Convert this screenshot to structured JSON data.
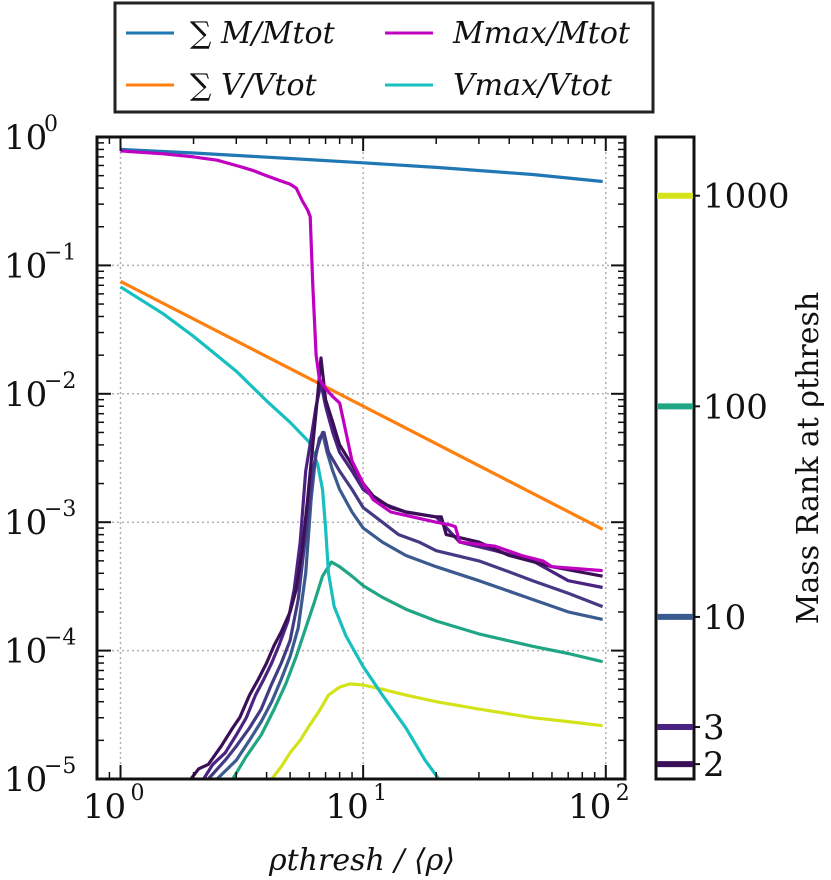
{
  "chart_data": {
    "type": "line",
    "xlabel": "ρthresh / ⟨ρ⟩",
    "ylabel": "",
    "xscale": "log",
    "yscale": "log",
    "xlim": [
      0.8,
      120
    ],
    "ylim": [
      1e-05,
      1
    ],
    "grid": true,
    "legend_placement": "top-center",
    "x_ticks": [
      {
        "base": "10",
        "exp": "0",
        "value": 1
      },
      {
        "base": "10",
        "exp": "1",
        "value": 10
      },
      {
        "base": "10",
        "exp": "2",
        "value": 100
      }
    ],
    "y_ticks": [
      {
        "base": "10",
        "exp": "0",
        "value": 1
      },
      {
        "base": "10",
        "exp": "−1",
        "value": 0.1
      },
      {
        "base": "10",
        "exp": "−2",
        "value": 0.01
      },
      {
        "base": "10",
        "exp": "−3",
        "value": 0.001
      },
      {
        "base": "10",
        "exp": "−4",
        "value": 0.0001
      },
      {
        "base": "10",
        "exp": "−5",
        "value": 1e-05
      }
    ],
    "legend": [
      {
        "key": "summ",
        "label": "∑ M/Mtot",
        "color": "#1f77b4"
      },
      {
        "key": "summ_v",
        "label": "∑ V/Vtot",
        "color": "#ff7f0e"
      },
      {
        "key": "mmax",
        "label": "Mmax/Mtot",
        "color": "#c000c0"
      },
      {
        "key": "vmax",
        "label": "Vmax/Vtot",
        "color": "#17bfc0"
      }
    ],
    "series": [
      {
        "key": "summ",
        "name": "∑ M/Mtot",
        "color": "#1f77b4",
        "points": [
          [
            1,
            0.8
          ],
          [
            2,
            0.75
          ],
          [
            5,
            0.68
          ],
          [
            10,
            0.63
          ],
          [
            20,
            0.58
          ],
          [
            50,
            0.51
          ],
          [
            97,
            0.45
          ]
        ]
      },
      {
        "key": "summ_v",
        "name": "∑ V/Vtot",
        "color": "#ff7f0e",
        "points": [
          [
            1,
            0.075
          ],
          [
            97,
            0.00088
          ]
        ]
      },
      {
        "key": "mmax",
        "name": "Mmax/Mtot",
        "color": "#c000c0",
        "points": [
          [
            1,
            0.78
          ],
          [
            1.5,
            0.74
          ],
          [
            2,
            0.7
          ],
          [
            2.5,
            0.66
          ],
          [
            3,
            0.6
          ],
          [
            3.5,
            0.55
          ],
          [
            4,
            0.5
          ],
          [
            4.5,
            0.46
          ],
          [
            5,
            0.43
          ],
          [
            5.3,
            0.4
          ],
          [
            5.6,
            0.32
          ],
          [
            5.9,
            0.27
          ],
          [
            6.05,
            0.24
          ],
          [
            6.2,
            0.07
          ],
          [
            6.4,
            0.02
          ],
          [
            6.6,
            0.013
          ],
          [
            7,
            0.011
          ],
          [
            7.5,
            0.0095
          ],
          [
            8,
            0.0085
          ],
          [
            8.5,
            0.005
          ],
          [
            9,
            0.003
          ],
          [
            10,
            0.002
          ],
          [
            11,
            0.0015
          ],
          [
            13,
            0.0012
          ],
          [
            16,
            0.0011
          ],
          [
            20,
            0.001
          ],
          [
            23,
            0.00095
          ],
          [
            24,
            0.00092
          ],
          [
            25,
            0.0007
          ],
          [
            35,
            0.00065
          ],
          [
            45,
            0.00055
          ],
          [
            55,
            0.0005
          ],
          [
            60,
            0.00045
          ],
          [
            70,
            0.00044
          ],
          [
            97,
            0.00042
          ]
        ]
      },
      {
        "key": "vmax",
        "name": "Vmax/Vtot",
        "color": "#17bfc0",
        "points": [
          [
            1,
            0.068
          ],
          [
            1.5,
            0.042
          ],
          [
            2,
            0.028
          ],
          [
            3,
            0.015
          ],
          [
            4,
            0.0088
          ],
          [
            5,
            0.006
          ],
          [
            6,
            0.0042
          ],
          [
            6.5,
            0.0028
          ],
          [
            6.8,
            0.0018
          ],
          [
            7,
            0.0009
          ],
          [
            7.2,
            0.0004
          ],
          [
            7.6,
            0.00022
          ],
          [
            8.5,
            0.00013
          ],
          [
            10,
            7.5e-05
          ],
          [
            12,
            4.5e-05
          ],
          [
            15,
            2.5e-05
          ],
          [
            18,
            1.4e-05
          ],
          [
            20.5,
            1e-05
          ]
        ]
      },
      {
        "key": "rank2",
        "name": "",
        "color": "#3b0f57",
        "points": [
          [
            1.95,
            1e-05
          ],
          [
            2.1,
            1.2e-05
          ],
          [
            2.3,
            1.3e-05
          ],
          [
            2.6,
            1.8e-05
          ],
          [
            2.9,
            2.5e-05
          ],
          [
            3.1,
            3e-05
          ],
          [
            3.4,
            4.5e-05
          ],
          [
            3.7,
            6e-05
          ],
          [
            4,
            8e-05
          ],
          [
            4.3,
            0.00011
          ],
          [
            4.6,
            0.00014
          ],
          [
            5,
            0.0002
          ],
          [
            5.3,
            0.0003
          ],
          [
            5.6,
            0.0006
          ],
          [
            5.9,
            0.0015
          ],
          [
            6.2,
            0.004
          ],
          [
            6.5,
            0.01
          ],
          [
            6.7,
            0.019
          ],
          [
            7,
            0.009
          ],
          [
            7.5,
            0.006
          ],
          [
            8,
            0.004
          ],
          [
            9,
            0.0028
          ],
          [
            10,
            0.002
          ],
          [
            11,
            0.0016
          ],
          [
            13,
            0.0013
          ],
          [
            15,
            0.0012
          ],
          [
            20,
            0.0011
          ],
          [
            21,
            0.0011
          ],
          [
            22,
            0.0008
          ],
          [
            30,
            0.0007
          ],
          [
            40,
            0.00055
          ],
          [
            60,
            0.00045
          ],
          [
            97,
            0.00038
          ]
        ]
      },
      {
        "key": "rank3",
        "name": "",
        "color": "#4a2382",
        "points": [
          [
            2.2,
            1e-05
          ],
          [
            2.4,
            1.3e-05
          ],
          [
            2.7,
            1.6e-05
          ],
          [
            3,
            2.2e-05
          ],
          [
            3.3,
            3e-05
          ],
          [
            3.6,
            4.5e-05
          ],
          [
            3.9,
            6e-05
          ],
          [
            4.2,
            8e-05
          ],
          [
            4.5,
            0.00011
          ],
          [
            4.9,
            0.00017
          ],
          [
            5.2,
            0.0003
          ],
          [
            5.5,
            0.0007
          ],
          [
            5.8,
            0.0025
          ],
          [
            6.1,
            0.0045
          ],
          [
            6.4,
            0.008
          ],
          [
            6.7,
            0.012
          ],
          [
            7,
            0.008
          ],
          [
            7.5,
            0.005
          ],
          [
            8,
            0.0035
          ],
          [
            9,
            0.0025
          ],
          [
            10,
            0.0018
          ],
          [
            12,
            0.0014
          ],
          [
            15,
            0.0012
          ],
          [
            20,
            0.0011
          ],
          [
            25,
            0.0007
          ],
          [
            35,
            0.0006
          ],
          [
            50,
            0.0005
          ],
          [
            70,
            0.00035
          ],
          [
            97,
            0.00031
          ]
        ]
      },
      {
        "key": "rank5",
        "name": "",
        "color": "#443a83",
        "points": [
          [
            2.3,
            1e-05
          ],
          [
            2.7,
            1.4e-05
          ],
          [
            3,
            1.8e-05
          ],
          [
            3.4,
            2.5e-05
          ],
          [
            3.8,
            3.5e-05
          ],
          [
            4.2,
            5.5e-05
          ],
          [
            4.6,
            8e-05
          ],
          [
            5,
            0.00012
          ],
          [
            5.4,
            0.00025
          ],
          [
            5.8,
            0.0008
          ],
          [
            6.2,
            0.0025
          ],
          [
            6.6,
            0.0045
          ],
          [
            6.9,
            0.005
          ],
          [
            7.2,
            0.0035
          ],
          [
            8,
            0.0025
          ],
          [
            9,
            0.0018
          ],
          [
            10,
            0.0013
          ],
          [
            12,
            0.001
          ],
          [
            14,
            0.0008
          ],
          [
            17,
            0.0007
          ],
          [
            20,
            0.0006
          ],
          [
            30,
            0.0005
          ],
          [
            40,
            0.00041
          ],
          [
            50,
            0.00035
          ],
          [
            70,
            0.00028
          ],
          [
            97,
            0.00022
          ]
        ]
      },
      {
        "key": "rank10",
        "name": "",
        "color": "#3b5a8f",
        "points": [
          [
            2.5,
            1e-05
          ],
          [
            3,
            1.4e-05
          ],
          [
            3.4,
            2e-05
          ],
          [
            3.8,
            2.8e-05
          ],
          [
            4.2,
            4e-05
          ],
          [
            4.6,
            6e-05
          ],
          [
            5,
            9e-05
          ],
          [
            5.4,
            0.00015
          ],
          [
            5.8,
            0.0004
          ],
          [
            6.1,
            0.0015
          ],
          [
            6.4,
            0.0035
          ],
          [
            6.8,
            0.005
          ],
          [
            7.1,
            0.0035
          ],
          [
            7.5,
            0.0025
          ],
          [
            8,
            0.0018
          ],
          [
            9,
            0.0012
          ],
          [
            10,
            0.0009
          ],
          [
            12,
            0.0007
          ],
          [
            15,
            0.00055
          ],
          [
            20,
            0.00045
          ],
          [
            30,
            0.00035
          ],
          [
            50,
            0.00025
          ],
          [
            70,
            0.0002
          ],
          [
            97,
            0.000175
          ]
        ]
      },
      {
        "key": "rank100",
        "name": "",
        "color": "#21a685",
        "points": [
          [
            2.9,
            1e-05
          ],
          [
            3.3,
            1.5e-05
          ],
          [
            3.8,
            2.2e-05
          ],
          [
            4.3,
            3.5e-05
          ],
          [
            4.8,
            5.5e-05
          ],
          [
            5.3,
            9e-05
          ],
          [
            5.8,
            0.00015
          ],
          [
            6.3,
            0.00024
          ],
          [
            6.8,
            0.00038
          ],
          [
            7.4,
            0.00049
          ],
          [
            8,
            0.00045
          ],
          [
            9,
            0.00038
          ],
          [
            10,
            0.00032
          ],
          [
            12,
            0.00026
          ],
          [
            15,
            0.00021
          ],
          [
            20,
            0.00017
          ],
          [
            30,
            0.000135
          ],
          [
            50,
            0.000108
          ],
          [
            70,
            9.5e-05
          ],
          [
            97,
            8.2e-05
          ]
        ]
      },
      {
        "key": "rank1000",
        "name": "",
        "color": "#d4e21a",
        "points": [
          [
            4.2,
            1e-05
          ],
          [
            4.6,
            1.25e-05
          ],
          [
            5,
            1.6e-05
          ],
          [
            5.5,
            2e-05
          ],
          [
            6,
            2.6e-05
          ],
          [
            6.6,
            3.4e-05
          ],
          [
            7.2,
            4.5e-05
          ],
          [
            8,
            5.2e-05
          ],
          [
            8.8,
            5.5e-05
          ],
          [
            10,
            5.4e-05
          ],
          [
            12,
            5e-05
          ],
          [
            15,
            4.5e-05
          ],
          [
            20,
            4e-05
          ],
          [
            30,
            3.5e-05
          ],
          [
            50,
            3e-05
          ],
          [
            70,
            2.8e-05
          ],
          [
            97,
            2.6e-05
          ]
        ]
      }
    ],
    "colorbar": {
      "label": "Mass Rank at ρthresh",
      "ticks": [
        {
          "label": "1000",
          "value": 1000,
          "color": "#d4e21a"
        },
        {
          "label": "100",
          "value": 100,
          "color": "#21a685"
        },
        {
          "label": "10",
          "value": 10,
          "color": "#3b5a8f"
        },
        {
          "label": "3",
          "value": 3,
          "color": "#4a2382"
        },
        {
          "label": "2",
          "value": 2,
          "color": "#3b0f57"
        }
      ],
      "range": [
        1.7,
        1900
      ]
    }
  }
}
